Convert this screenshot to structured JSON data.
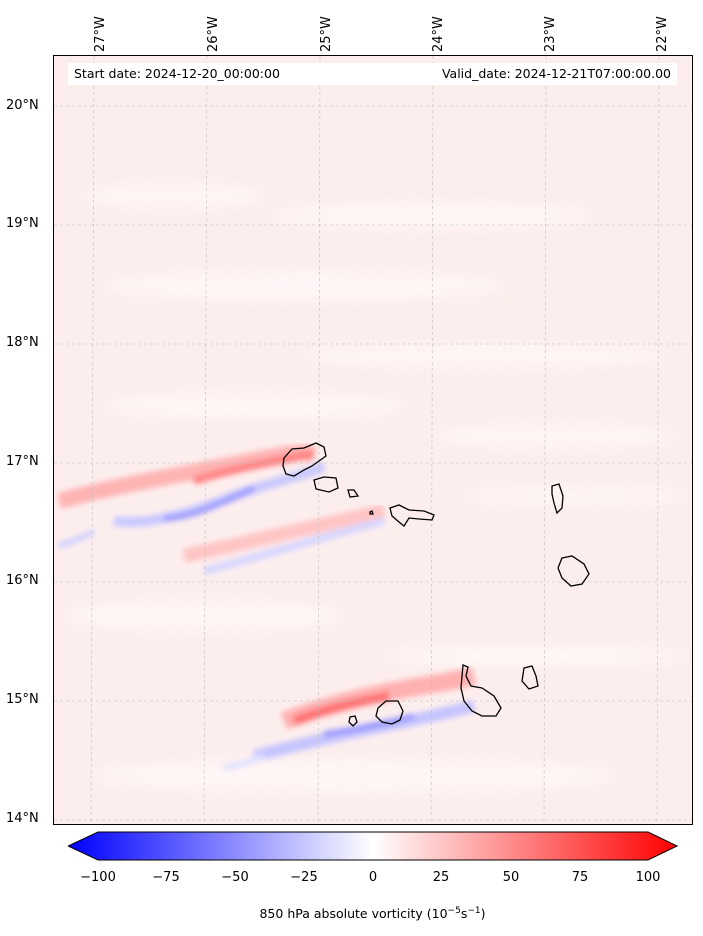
{
  "info": {
    "start_date": "Start date: 2024-12-20_00:00:00",
    "valid_date": "Valid_date: 2024-12-21T07:00:00.00"
  },
  "map": {
    "lon_labels": [
      "27°W",
      "26°W",
      "25°W",
      "24°W",
      "23°W",
      "22°W"
    ],
    "lat_labels": [
      "20°N",
      "19°N",
      "18°N",
      "17°N",
      "16°N",
      "15°N",
      "14°N"
    ]
  },
  "colorbar": {
    "ticks": [
      "−100",
      "−75",
      "−50",
      "−25",
      "0",
      "25",
      "50",
      "75",
      "100"
    ],
    "label_main": "850 hPa absolute vorticity (10",
    "label_exp1": "−5",
    "label_mid": "s",
    "label_exp2": "−1",
    "label_end": ")",
    "min_color": "#0000ff",
    "max_color": "#ff0000"
  }
}
